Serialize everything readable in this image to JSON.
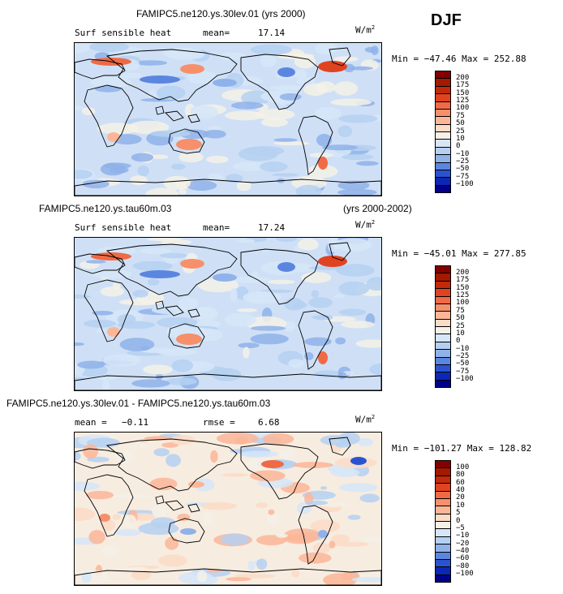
{
  "season": "DJF",
  "panel1": {
    "title": "FAMIPC5.ne120.ys.30lev.01 (yrs 2000)",
    "variable": "Surf sensible heat",
    "mean_label": "mean=",
    "mean_value": "17.14",
    "units_base": "W/m",
    "units_exp": "2",
    "minmax": "Min = −47.46 Max = 252.88",
    "levels": [
      "200",
      "175",
      "150",
      "125",
      "100",
      "75",
      "50",
      "25",
      "10",
      "0",
      "−10",
      "−25",
      "−50",
      "−75",
      "−100"
    ]
  },
  "panel2": {
    "title": "FAMIPC5.ne120.ys.tau60m.03",
    "years": "(yrs 2000-2002)",
    "variable": "Surf sensible heat",
    "mean_label": "mean=",
    "mean_value": "17.24",
    "units_base": "W/m",
    "units_exp": "2",
    "minmax": "Min = −45.01 Max = 277.85",
    "levels": [
      "200",
      "175",
      "150",
      "125",
      "100",
      "75",
      "50",
      "25",
      "10",
      "0",
      "−10",
      "−25",
      "−50",
      "−75",
      "−100"
    ]
  },
  "panel3": {
    "title": "FAMIPC5.ne120.ys.30lev.01 - FAMIPC5.ne120.ys.tau60m.03",
    "mean_label": "mean =",
    "mean_value": "−0.11",
    "rmse_label": "rmse =",
    "rmse_value": "6.68",
    "units_base": "W/m",
    "units_exp": "2",
    "minmax": "Min = −101.27 Max = 128.82",
    "levels": [
      "100",
      "80",
      "60",
      "40",
      "20",
      "10",
      "5",
      "0",
      "−5",
      "−10",
      "−20",
      "−40",
      "−60",
      "−80",
      "−100"
    ]
  },
  "colors": {
    "field_scale": [
      "#830000",
      "#a31a00",
      "#c22a0a",
      "#e04320",
      "#ef6a45",
      "#f6906b",
      "#fbb698",
      "#fcdcc6",
      "#f5f1e7",
      "#d6e6f8",
      "#b5d0f1",
      "#8fb2ea",
      "#5b86e0",
      "#2c53cf",
      "#0b28b5",
      "#00008a"
    ],
    "diff_scale": [
      "#830000",
      "#a31a00",
      "#c22a0a",
      "#e04320",
      "#ef6a45",
      "#f6906b",
      "#fbb698",
      "#fcdcc6",
      "#f5f1e7",
      "#d6e6f8",
      "#b5d0f1",
      "#8fb2ea",
      "#5b86e0",
      "#2c53cf",
      "#0b28b5",
      "#00008a"
    ],
    "ocean_field": "#cfe0f6",
    "ocean_diff": "#f7ece0"
  },
  "chart_data": [
    {
      "type": "heatmap",
      "title": "FAMIPC5.ne120.ys.30lev.01 (yrs 2000)",
      "subtitle": "Surf sensible heat",
      "mean": 17.14,
      "units": "W/m2",
      "min": -47.46,
      "max": 252.88,
      "contour_levels": [
        -100,
        -75,
        -50,
        -25,
        -10,
        0,
        10,
        25,
        50,
        75,
        100,
        125,
        150,
        175,
        200
      ]
    },
    {
      "type": "heatmap",
      "title": "FAMIPC5.ne120.ys.tau60m.03 (yrs 2000-2002)",
      "subtitle": "Surf sensible heat",
      "mean": 17.24,
      "units": "W/m2",
      "min": -45.01,
      "max": 277.85,
      "contour_levels": [
        -100,
        -75,
        -50,
        -25,
        -10,
        0,
        10,
        25,
        50,
        75,
        100,
        125,
        150,
        175,
        200
      ]
    },
    {
      "type": "heatmap",
      "title": "FAMIPC5.ne120.ys.30lev.01 - FAMIPC5.ne120.ys.tau60m.03",
      "mean": -0.11,
      "rmse": 6.68,
      "units": "W/m2",
      "min": -101.27,
      "max": 128.82,
      "contour_levels": [
        -100,
        -80,
        -60,
        -40,
        -20,
        -10,
        -5,
        0,
        5,
        10,
        20,
        40,
        60,
        80,
        100
      ]
    }
  ]
}
